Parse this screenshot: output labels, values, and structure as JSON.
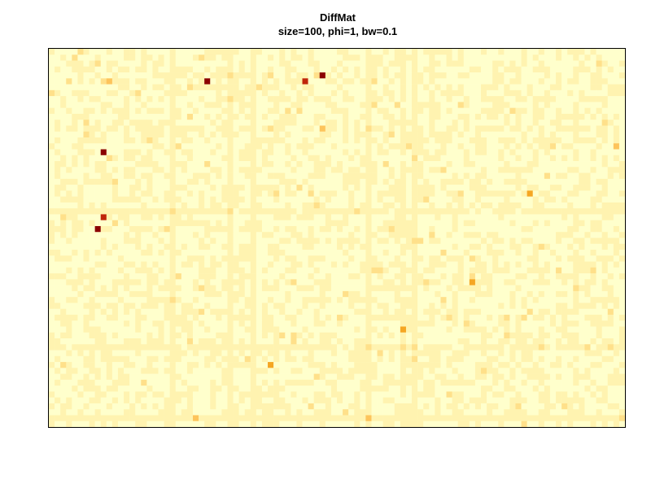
{
  "chart_data": {
    "type": "heatmap",
    "title": "DiffMat",
    "subtitle": "size=100, phi=1, bw=0.1",
    "xlabel": "",
    "ylabel": "",
    "grid": false,
    "legend": "none",
    "colormap": [
      "#FFFFCC",
      "#FFF3B0",
      "#FFE08A",
      "#FDC45C",
      "#F5A623",
      "#E8600C",
      "#C0250B",
      "#8B0000"
    ],
    "base_level_note_free": true,
    "dims": {
      "cols": 100,
      "rows": 64
    },
    "hot_cells": [
      {
        "col": 9,
        "row": 5,
        "v": 0.35
      },
      {
        "col": 10,
        "row": 5,
        "v": 0.38
      },
      {
        "col": 27,
        "row": 5,
        "v": 0.95
      },
      {
        "col": 44,
        "row": 5,
        "v": 0.92
      },
      {
        "col": 47,
        "row": 4,
        "v": 0.95
      },
      {
        "col": 24,
        "row": 11,
        "v": 0.35
      },
      {
        "col": 47,
        "row": 13,
        "v": 0.38
      },
      {
        "col": 17,
        "row": 15,
        "v": 0.32
      },
      {
        "col": 9,
        "row": 17,
        "v": 0.93
      },
      {
        "col": 98,
        "row": 16,
        "v": 0.38
      },
      {
        "col": 39,
        "row": 24,
        "v": 0.3
      },
      {
        "col": 83,
        "row": 24,
        "v": 0.55
      },
      {
        "col": 9,
        "row": 28,
        "v": 0.92
      },
      {
        "col": 8,
        "row": 30,
        "v": 0.98
      },
      {
        "col": 20,
        "row": 30,
        "v": 0.35
      },
      {
        "col": 73,
        "row": 39,
        "v": 0.6
      },
      {
        "col": 61,
        "row": 47,
        "v": 0.55
      },
      {
        "col": 38,
        "row": 53,
        "v": 0.5
      },
      {
        "col": 25,
        "row": 62,
        "v": 0.38
      }
    ]
  }
}
